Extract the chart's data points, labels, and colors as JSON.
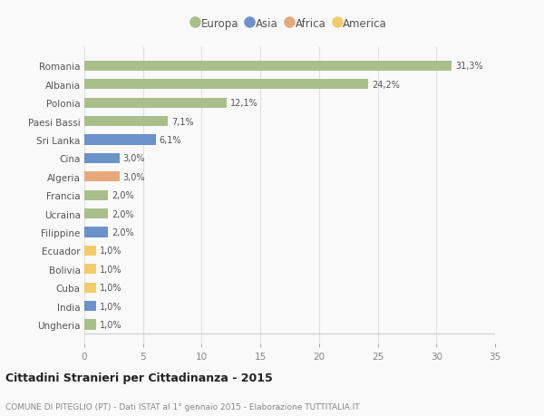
{
  "countries": [
    "Romania",
    "Albania",
    "Polonia",
    "Paesi Bassi",
    "Sri Lanka",
    "Cina",
    "Algeria",
    "Francia",
    "Ucraina",
    "Filippine",
    "Ecuador",
    "Bolivia",
    "Cuba",
    "India",
    "Ungheria"
  ],
  "values": [
    31.3,
    24.2,
    12.1,
    7.1,
    6.1,
    3.0,
    3.0,
    2.0,
    2.0,
    2.0,
    1.0,
    1.0,
    1.0,
    1.0,
    1.0
  ],
  "labels": [
    "31,3%",
    "24,2%",
    "12,1%",
    "7,1%",
    "6,1%",
    "3,0%",
    "3,0%",
    "2,0%",
    "2,0%",
    "2,0%",
    "1,0%",
    "1,0%",
    "1,0%",
    "1,0%",
    "1,0%"
  ],
  "continent": [
    "Europa",
    "Europa",
    "Europa",
    "Europa",
    "Asia",
    "Asia",
    "Africa",
    "Europa",
    "Europa",
    "Asia",
    "America",
    "America",
    "America",
    "Asia",
    "Europa"
  ],
  "colors": {
    "Europa": "#a8bf8a",
    "Asia": "#6b93c9",
    "Africa": "#e8a87c",
    "America": "#f2cc6a"
  },
  "title": "Cittadini Stranieri per Cittadinanza - 2015",
  "subtitle": "COMUNE DI PITEGLIO (PT) - Dati ISTAT al 1° gennaio 2015 - Elaborazione TUTTITALIA.IT",
  "xlim": [
    0,
    35
  ],
  "xticks": [
    0,
    5,
    10,
    15,
    20,
    25,
    30,
    35
  ],
  "background_color": "#f9f9f9",
  "grid_color": "#e0e0e0"
}
